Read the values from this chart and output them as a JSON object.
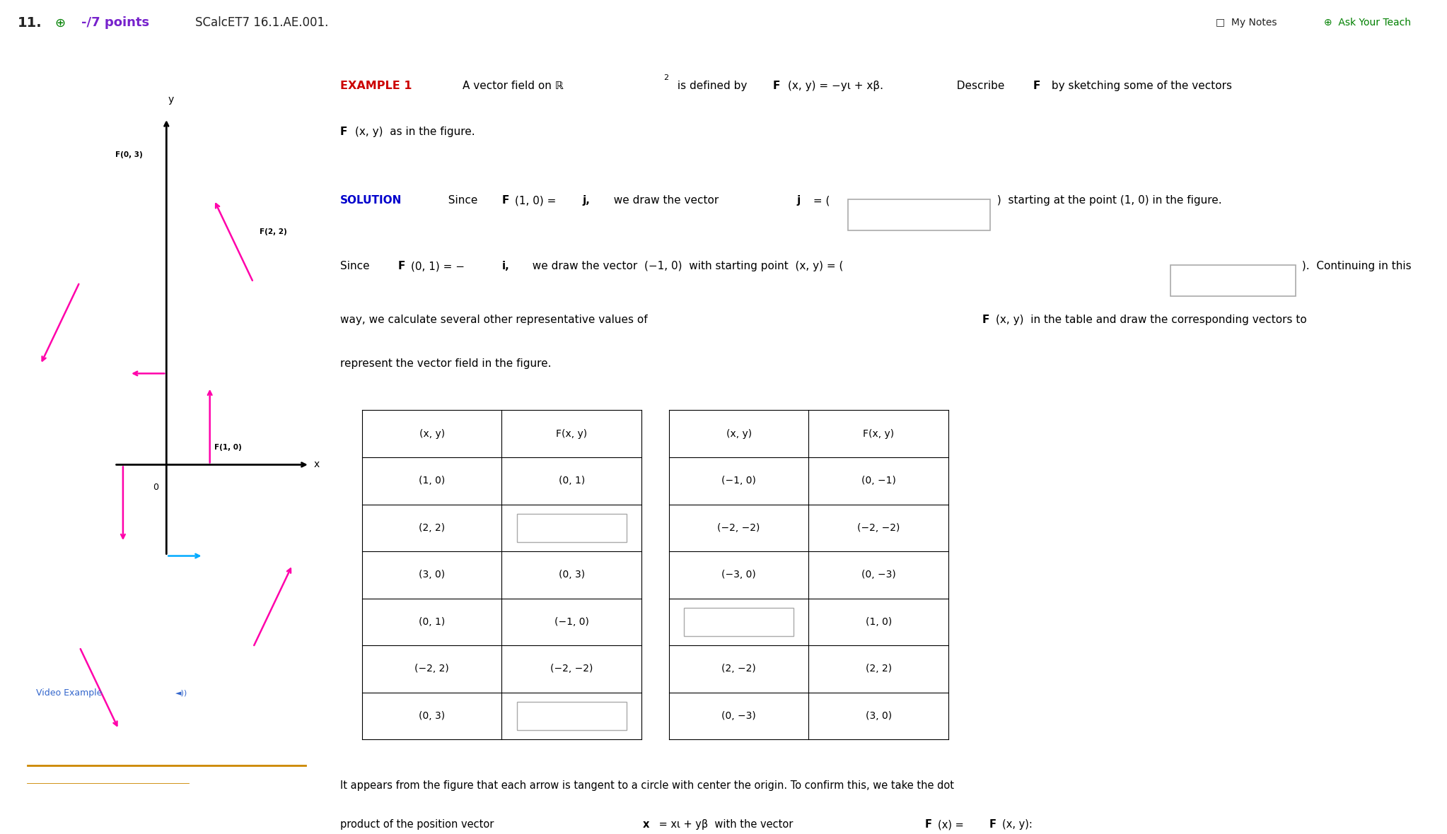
{
  "header_bg": "#a8c4d4",
  "body_bg": "#ffffff",
  "header_number": "11.",
  "header_points": "-/7 points",
  "header_code": "SCalcET7 16.1.AE.001.",
  "example_label_color": "#cc0000",
  "solution_label_color": "#0000cc",
  "table_rows": [
    [
      "(1, 0)",
      "(0, 1)",
      "(−1, 0)",
      "(0, −1)"
    ],
    [
      "(2, 2)",
      "",
      "(−2, −2)",
      "(−2, −2)"
    ],
    [
      "(3, 0)",
      "(0, 3)",
      "(−3, 0)",
      "(0, −3)"
    ],
    [
      "(0, 1)",
      "(−1, 0)",
      "",
      "(1, 0)"
    ],
    [
      "(−2, 2)",
      "(−2, −2)",
      "(2, −2)",
      "(2, 2)"
    ],
    [
      "(0, 3)",
      "",
      "(0, −3)",
      "(3, 0)"
    ]
  ],
  "arrows_color": "#ff00aa",
  "cyan_arrow_color": "#00aaff",
  "video_example": "Video Example",
  "orange_line_color": "#cc8800"
}
